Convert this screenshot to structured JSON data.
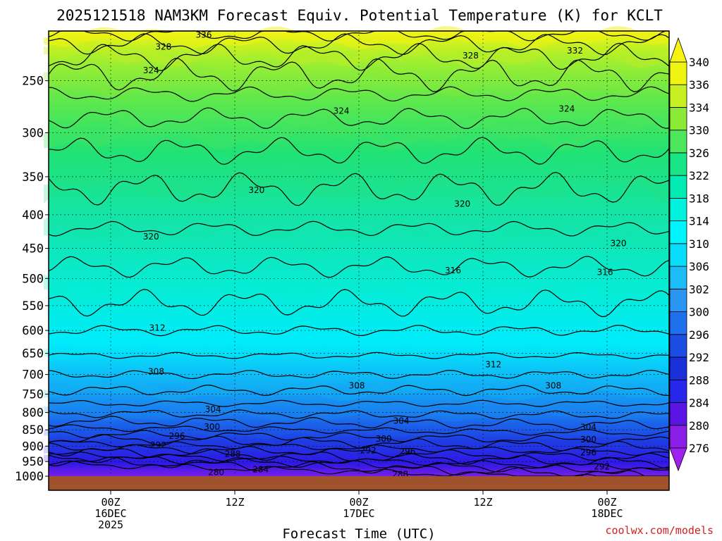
{
  "chart_data": {
    "type": "heatmap",
    "title": "2025121518 NAM3KM Forecast Equiv. Potential Temperature (K) for KCLT",
    "xlabel": "Forecast Time (UTC)",
    "ylabel": "",
    "variable": "Equivalent Potential Temperature (K)",
    "y_axis": {
      "scale": "log-pressure",
      "reversed": true,
      "range": [
        1000,
        210
      ],
      "ticks": [
        250,
        300,
        350,
        400,
        450,
        500,
        550,
        600,
        650,
        700,
        750,
        800,
        850,
        900,
        950,
        1000
      ]
    },
    "x_axis": {
      "units": "hours from 2025121518",
      "range": [
        0,
        60
      ],
      "ticks": [
        {
          "hour": 6,
          "lines": [
            "00Z",
            "16DEC",
            "2025"
          ]
        },
        {
          "hour": 18,
          "lines": [
            "12Z"
          ]
        },
        {
          "hour": 30,
          "lines": [
            "00Z",
            "17DEC"
          ]
        },
        {
          "hour": 42,
          "lines": [
            "12Z"
          ]
        },
        {
          "hour": 54,
          "lines": [
            "00Z",
            "18DEC"
          ]
        }
      ]
    },
    "colorbar": {
      "levels": [
        276,
        280,
        284,
        288,
        292,
        296,
        300,
        302,
        306,
        310,
        314,
        318,
        322,
        326,
        330,
        334,
        336,
        340
      ],
      "colors": [
        "#8a1ee6",
        "#5a14e6",
        "#2828ec",
        "#1a30d8",
        "#1c4ee4",
        "#1e70ee",
        "#2a96f2",
        "#1cbcf6",
        "#0adcfc",
        "#00f4fc",
        "#00f2dc",
        "#00ecb2",
        "#18e686",
        "#4ee65c",
        "#8aea34",
        "#c6f022",
        "#f0f412"
      ]
    },
    "contour_labels": [
      {
        "value": "336",
        "hour": 15.0,
        "p": 213
      },
      {
        "value": "328",
        "hour": 11.1,
        "p": 222
      },
      {
        "value": "324",
        "hour": 9.9,
        "p": 241
      },
      {
        "value": "328",
        "hour": 40.8,
        "p": 229
      },
      {
        "value": "332",
        "hour": 50.9,
        "p": 225
      },
      {
        "value": "324",
        "hour": 28.3,
        "p": 278
      },
      {
        "value": "324",
        "hour": 50.1,
        "p": 276
      },
      {
        "value": "320",
        "hour": 20.1,
        "p": 367
      },
      {
        "value": "320",
        "hour": 9.9,
        "p": 432
      },
      {
        "value": "320",
        "hour": 40.0,
        "p": 385
      },
      {
        "value": "320",
        "hour": 55.1,
        "p": 442
      },
      {
        "value": "316",
        "hour": 39.1,
        "p": 486
      },
      {
        "value": "316",
        "hour": 53.8,
        "p": 489
      },
      {
        "value": "312",
        "hour": 10.5,
        "p": 595
      },
      {
        "value": "312",
        "hour": 43.0,
        "p": 676
      },
      {
        "value": "308",
        "hour": 10.4,
        "p": 693
      },
      {
        "value": "308",
        "hour": 29.8,
        "p": 728
      },
      {
        "value": "308",
        "hour": 48.8,
        "p": 728
      },
      {
        "value": "304",
        "hour": 15.9,
        "p": 791
      },
      {
        "value": "304",
        "hour": 34.1,
        "p": 824
      },
      {
        "value": "304",
        "hour": 52.2,
        "p": 842
      },
      {
        "value": "300",
        "hour": 15.8,
        "p": 841
      },
      {
        "value": "300",
        "hour": 32.4,
        "p": 877
      },
      {
        "value": "300",
        "hour": 52.2,
        "p": 879
      },
      {
        "value": "296",
        "hour": 12.4,
        "p": 869
      },
      {
        "value": "296",
        "hour": 34.7,
        "p": 917
      },
      {
        "value": "296",
        "hour": 52.2,
        "p": 921
      },
      {
        "value": "292",
        "hour": 10.6,
        "p": 897
      },
      {
        "value": "292",
        "hour": 30.9,
        "p": 914
      },
      {
        "value": "292",
        "hour": 53.5,
        "p": 967
      },
      {
        "value": "288",
        "hour": 17.8,
        "p": 925
      },
      {
        "value": "288",
        "hour": 34.0,
        "p": 994
      },
      {
        "value": "284",
        "hour": 20.5,
        "p": 977
      },
      {
        "value": "280",
        "hour": 16.2,
        "p": 987
      }
    ],
    "ground_color": "#a0522d",
    "credit": "coolwx.com/models"
  }
}
